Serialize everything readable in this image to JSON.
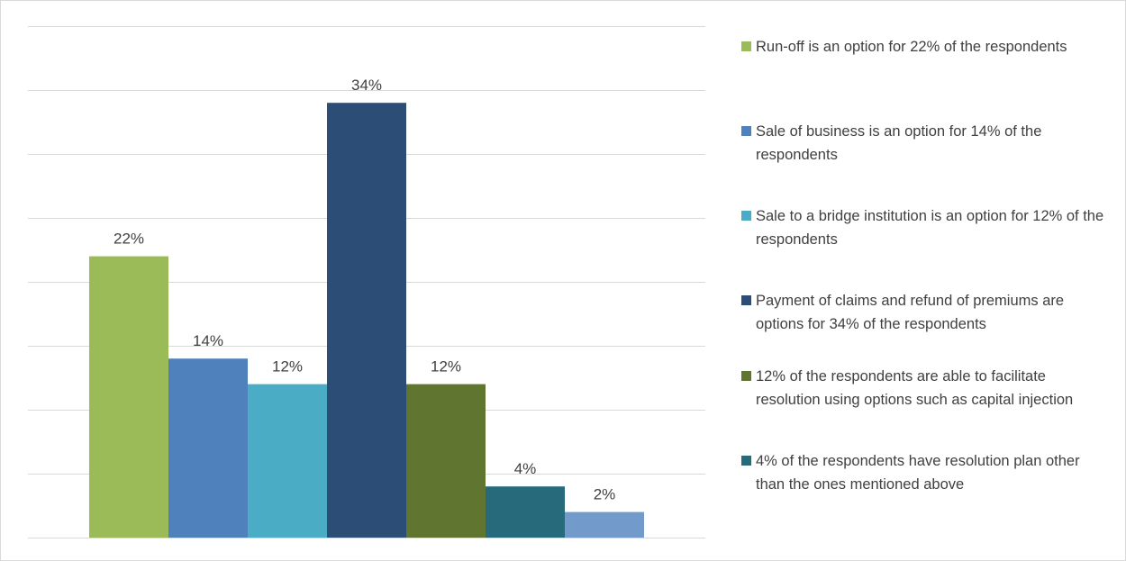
{
  "chart_data": {
    "type": "bar",
    "title": "",
    "xlabel": "",
    "ylabel": "",
    "ylim": [
      0,
      0.4
    ],
    "grid": true,
    "legend_position": "right",
    "series": [
      {
        "name": "Run-off is an option for 22% of the respondents",
        "value": 0.22,
        "label": "22%",
        "color": "#9bbb59"
      },
      {
        "name": "Sale of business is an option for 14% of the respondents",
        "value": 0.14,
        "label": "14%",
        "color": "#4f81bd"
      },
      {
        "name": "Sale to a bridge institution is an option for 12% of the respondents",
        "value": 0.12,
        "label": "12%",
        "color": "#4bacc6"
      },
      {
        "name": "Payment of claims and refund of premiums are options for 34% of the respondents",
        "value": 0.34,
        "label": "34%",
        "color": "#2c4d75"
      },
      {
        "name": "12% of the respondents are able to facilitate resolution using options such as capital injection",
        "value": 0.12,
        "label": "12%",
        "color": "#5f7530"
      },
      {
        "name": "4% of the respondents have resolution plan other than the ones mentioned above",
        "value": 0.04,
        "label": "4%",
        "color": "#276a7c"
      },
      {
        "name": "",
        "value": 0.02,
        "label": "2%",
        "color": "#729aca"
      }
    ]
  }
}
